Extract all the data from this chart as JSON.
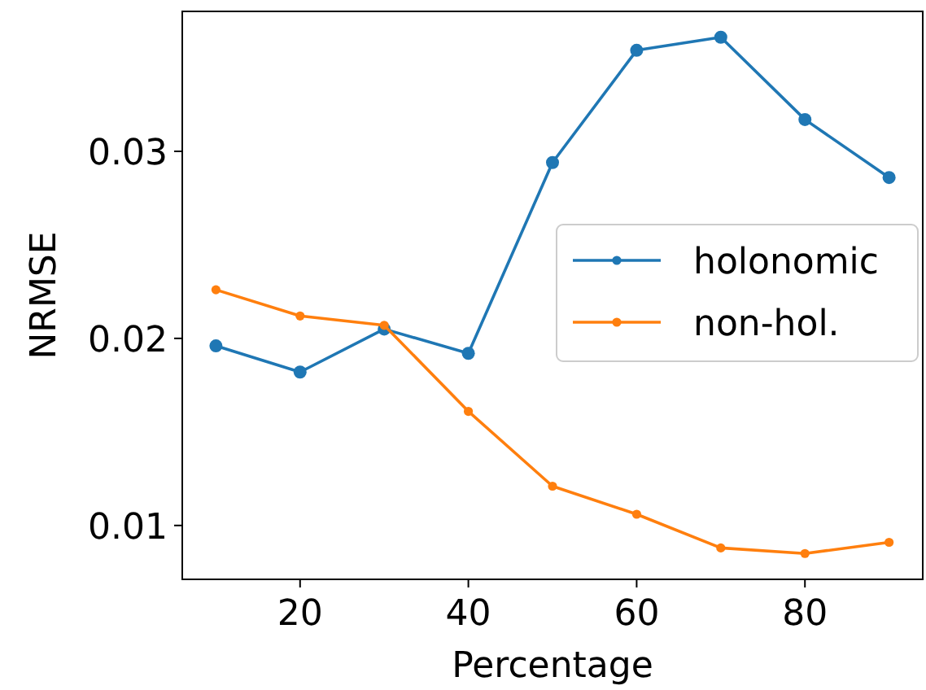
{
  "chart_data": {
    "type": "line",
    "xlabel": "Percentage",
    "ylabel": "NRMSE",
    "x": [
      10,
      20,
      30,
      40,
      50,
      60,
      70,
      80,
      90
    ],
    "series": [
      {
        "name": "holonomic",
        "color": "#1f77b4",
        "values": [
          0.0196,
          0.0182,
          0.0205,
          0.0192,
          0.0294,
          0.0354,
          0.0361,
          0.0317,
          0.0286
        ]
      },
      {
        "name": "non-hol.",
        "color": "#ff7f0e",
        "values": [
          0.0226,
          0.0212,
          0.0207,
          0.0161,
          0.0121,
          0.0106,
          0.0088,
          0.0085,
          0.0091
        ]
      }
    ],
    "xlim": [
      6,
      94
    ],
    "ylim": [
      0.00712,
      0.03748
    ],
    "xticks": [
      20,
      40,
      60,
      80
    ],
    "yticks": [
      0.01,
      0.02,
      0.03
    ],
    "marker": "circle",
    "legend": "right",
    "grid": false
  }
}
